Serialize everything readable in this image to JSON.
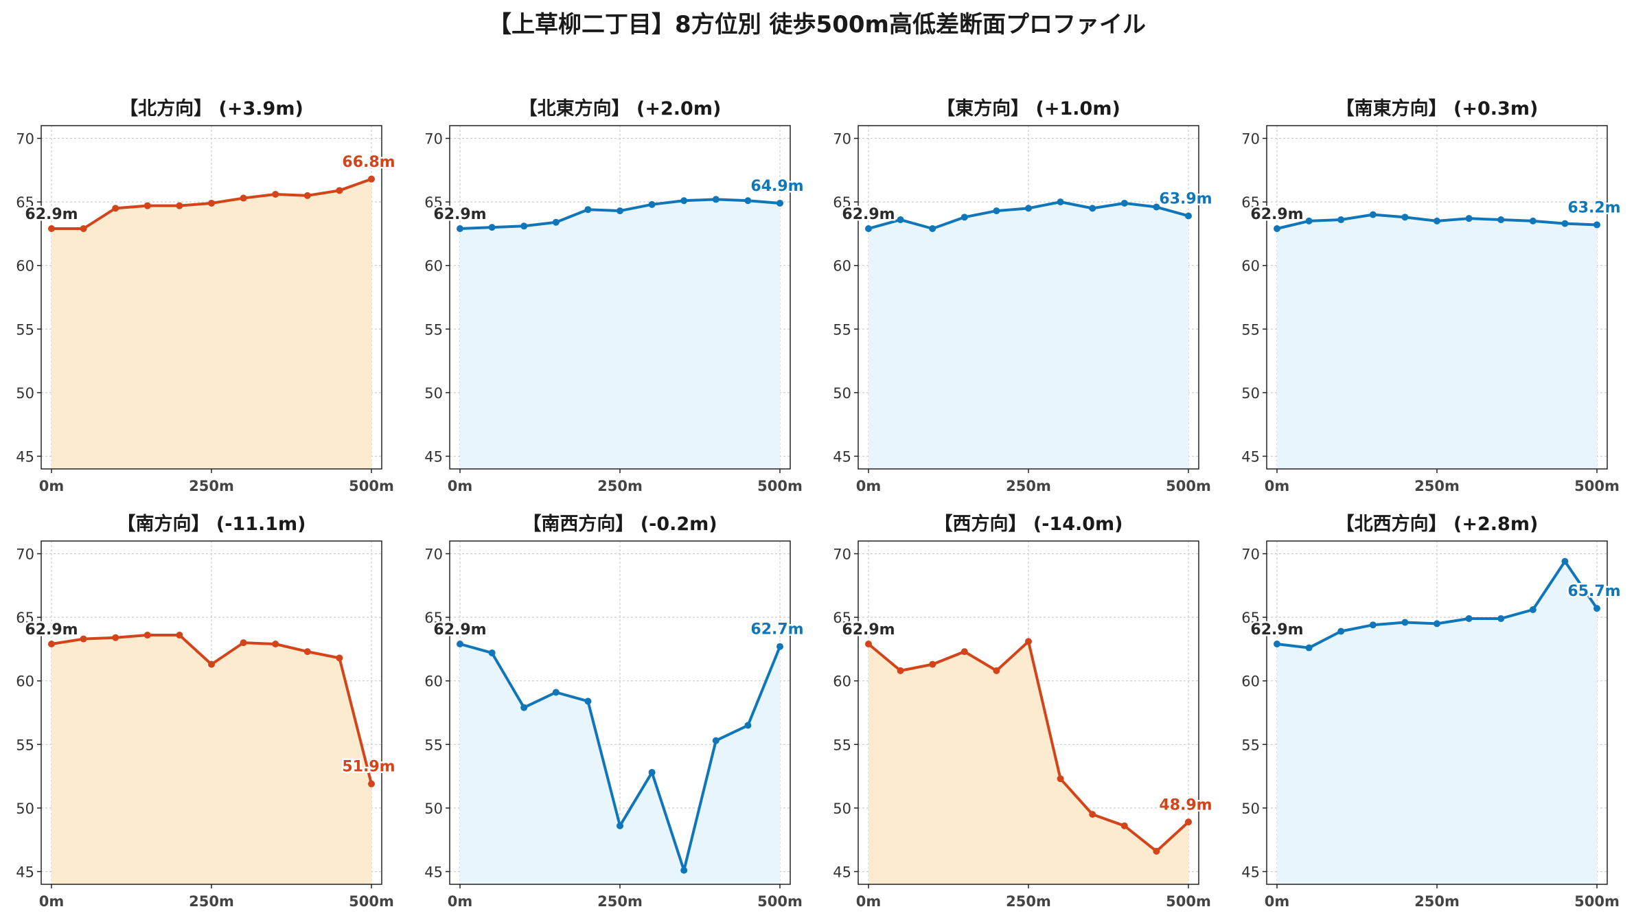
{
  "figure": {
    "title": "【上草柳二丁目】8方位別 徒歩500m高低差断面プロファイル"
  },
  "style": {
    "up_color": "#d4441a",
    "up_fill": "#fdebd0",
    "down_color": "#0f76ba",
    "down_fill": "#e8f5fc",
    "start_label_color": "#2b2b2b"
  },
  "chart_data": [
    {
      "type": "area",
      "title": "【北方向】 (+3.9m)",
      "trend": "up",
      "x": [
        0,
        50,
        100,
        150,
        200,
        250,
        300,
        350,
        400,
        450,
        500
      ],
      "y": [
        62.9,
        62.9,
        64.5,
        64.7,
        64.7,
        64.9,
        65.3,
        65.6,
        65.5,
        65.9,
        66.8
      ],
      "start_label": "62.9m",
      "end_label": "66.8m",
      "xlim": [
        0,
        500
      ],
      "ylim": [
        44,
        71
      ],
      "xticks": [
        "0m",
        "250m",
        "500m"
      ],
      "yticks": [
        45,
        50,
        55,
        60,
        65,
        70
      ],
      "grid": true
    },
    {
      "type": "area",
      "title": "【北東方向】 (+2.0m)",
      "trend": "down",
      "x": [
        0,
        50,
        100,
        150,
        200,
        250,
        300,
        350,
        400,
        450,
        500
      ],
      "y": [
        62.9,
        63.0,
        63.1,
        63.4,
        64.4,
        64.3,
        64.8,
        65.1,
        65.2,
        65.1,
        64.9
      ],
      "start_label": "62.9m",
      "end_label": "64.9m",
      "xlim": [
        0,
        500
      ],
      "ylim": [
        44,
        71
      ],
      "xticks": [
        "0m",
        "250m",
        "500m"
      ],
      "yticks": [
        45,
        50,
        55,
        60,
        65,
        70
      ],
      "grid": true
    },
    {
      "type": "area",
      "title": "【東方向】 (+1.0m)",
      "trend": "down",
      "x": [
        0,
        50,
        100,
        150,
        200,
        250,
        300,
        350,
        400,
        450,
        500
      ],
      "y": [
        62.9,
        63.6,
        62.9,
        63.8,
        64.3,
        64.5,
        65.0,
        64.5,
        64.9,
        64.6,
        63.9
      ],
      "start_label": "62.9m",
      "end_label": "63.9m",
      "xlim": [
        0,
        500
      ],
      "ylim": [
        44,
        71
      ],
      "xticks": [
        "0m",
        "250m",
        "500m"
      ],
      "yticks": [
        45,
        50,
        55,
        60,
        65,
        70
      ],
      "grid": true
    },
    {
      "type": "area",
      "title": "【南東方向】 (+0.3m)",
      "trend": "down",
      "x": [
        0,
        50,
        100,
        150,
        200,
        250,
        300,
        350,
        400,
        450,
        500
      ],
      "y": [
        62.9,
        63.5,
        63.6,
        64.0,
        63.8,
        63.5,
        63.7,
        63.6,
        63.5,
        63.3,
        63.2
      ],
      "start_label": "62.9m",
      "end_label": "63.2m",
      "xlim": [
        0,
        500
      ],
      "ylim": [
        44,
        71
      ],
      "xticks": [
        "0m",
        "250m",
        "500m"
      ],
      "yticks": [
        45,
        50,
        55,
        60,
        65,
        70
      ],
      "grid": true
    },
    {
      "type": "area",
      "title": "【南方向】 (-11.1m)",
      "trend": "up",
      "x": [
        0,
        50,
        100,
        150,
        200,
        250,
        300,
        350,
        400,
        450,
        500
      ],
      "y": [
        62.9,
        63.3,
        63.4,
        63.6,
        63.6,
        61.3,
        63.0,
        62.9,
        62.3,
        61.8,
        51.9
      ],
      "start_label": "62.9m",
      "end_label": "51.9m",
      "xlim": [
        0,
        500
      ],
      "ylim": [
        44,
        71
      ],
      "xticks": [
        "0m",
        "250m",
        "500m"
      ],
      "yticks": [
        45,
        50,
        55,
        60,
        65,
        70
      ],
      "grid": true
    },
    {
      "type": "area",
      "title": "【南西方向】 (-0.2m)",
      "trend": "down",
      "x": [
        0,
        50,
        100,
        150,
        200,
        250,
        300,
        350,
        400,
        450,
        500
      ],
      "y": [
        62.9,
        62.2,
        57.9,
        59.1,
        58.4,
        48.6,
        52.8,
        45.1,
        55.3,
        56.5,
        62.7
      ],
      "start_label": "62.9m",
      "end_label": "62.7m",
      "xlim": [
        0,
        500
      ],
      "ylim": [
        44,
        71
      ],
      "xticks": [
        "0m",
        "250m",
        "500m"
      ],
      "yticks": [
        45,
        50,
        55,
        60,
        65,
        70
      ],
      "grid": true
    },
    {
      "type": "area",
      "title": "【西方向】 (-14.0m)",
      "trend": "up",
      "x": [
        0,
        50,
        100,
        150,
        200,
        250,
        300,
        350,
        400,
        450,
        500
      ],
      "y": [
        62.9,
        60.8,
        61.3,
        62.3,
        60.8,
        63.1,
        52.3,
        49.5,
        48.6,
        46.6,
        48.9
      ],
      "start_label": "62.9m",
      "end_label": "48.9m",
      "xlim": [
        0,
        500
      ],
      "ylim": [
        44,
        71
      ],
      "xticks": [
        "0m",
        "250m",
        "500m"
      ],
      "yticks": [
        45,
        50,
        55,
        60,
        65,
        70
      ],
      "grid": true
    },
    {
      "type": "area",
      "title": "【北西方向】 (+2.8m)",
      "trend": "down",
      "x": [
        0,
        50,
        100,
        150,
        200,
        250,
        300,
        350,
        400,
        450,
        500
      ],
      "y": [
        62.9,
        62.6,
        63.9,
        64.4,
        64.6,
        64.5,
        64.9,
        64.9,
        65.6,
        69.4,
        65.7
      ],
      "start_label": "62.9m",
      "end_label": "65.7m",
      "xlim": [
        0,
        500
      ],
      "ylim": [
        44,
        71
      ],
      "xticks": [
        "0m",
        "250m",
        "500m"
      ],
      "yticks": [
        45,
        50,
        55,
        60,
        65,
        70
      ],
      "grid": true
    }
  ]
}
